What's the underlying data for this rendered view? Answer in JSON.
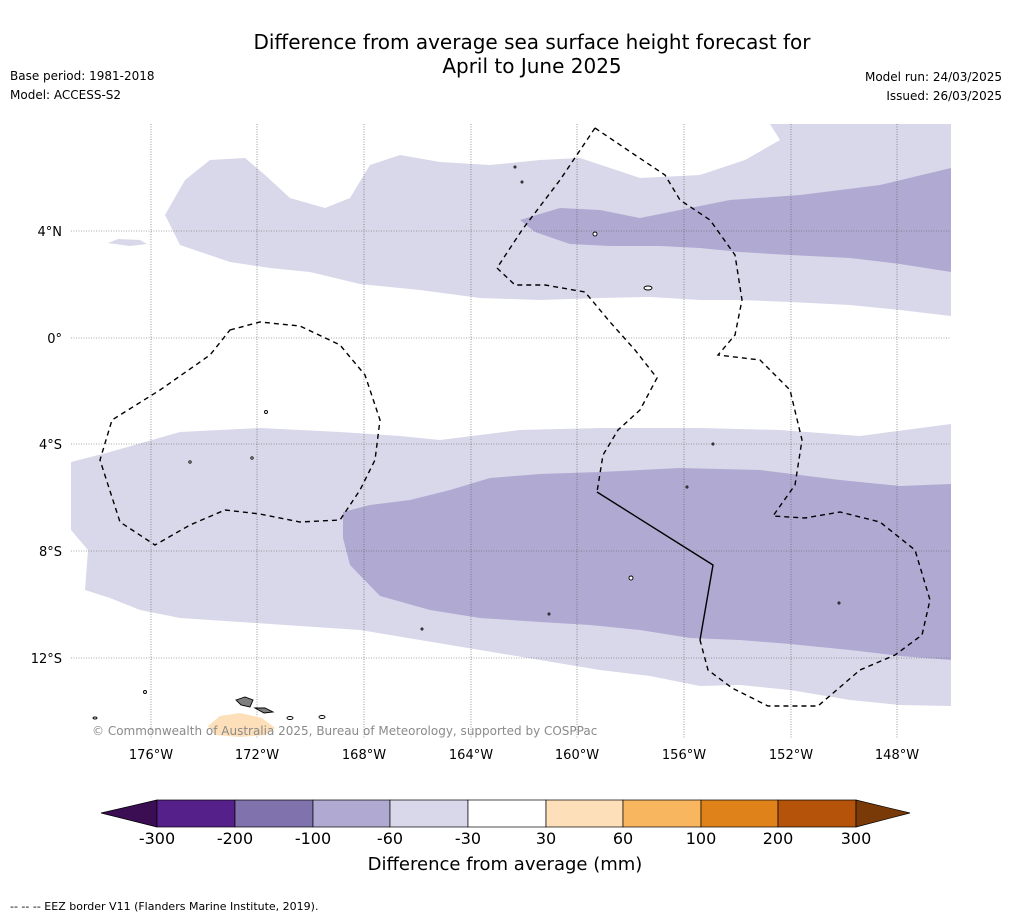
{
  "title": {
    "line1": "Difference from average sea surface height forecast for",
    "line2": "April to June 2025"
  },
  "meta": {
    "base_period": "Base period: 1981-2018",
    "model": "Model: ACCESS-S2",
    "model_run": "Model run: 24/03/2025",
    "issued": "Issued: 26/03/2025"
  },
  "map": {
    "lat_labels": [
      "4°N",
      "0°",
      "4°S",
      "8°S",
      "12°S"
    ],
    "lon_labels": [
      "176°W",
      "172°W",
      "168°W",
      "164°W",
      "160°W",
      "156°W",
      "152°W",
      "148°W"
    ],
    "credit": "© Commonwealth of Australia 2025, Bureau of Meteorology, supported by COSPPac",
    "colors": {
      "band_-60_-30": "#d8d8ea",
      "band_-100_-60": "#b0a9d2",
      "land": "#7f7f7f",
      "land_positive": "#fde0b9"
    }
  },
  "colorbar": {
    "ticks": [
      "-300",
      "-200",
      "-100",
      "-60",
      "-30",
      "30",
      "60",
      "100",
      "200",
      "300"
    ],
    "colors": [
      "#3b0d53",
      "#56208a",
      "#8072ad",
      "#b0a9d2",
      "#d8d8ea",
      "#ffffff",
      "#fde0b9",
      "#f8b75e",
      "#e0821a",
      "#b45309",
      "#7a3a08"
    ],
    "label": "Difference from average (mm)"
  },
  "footnote": "--  --  -- EEZ border V11 (Flanders Marine Institute, 2019)."
}
